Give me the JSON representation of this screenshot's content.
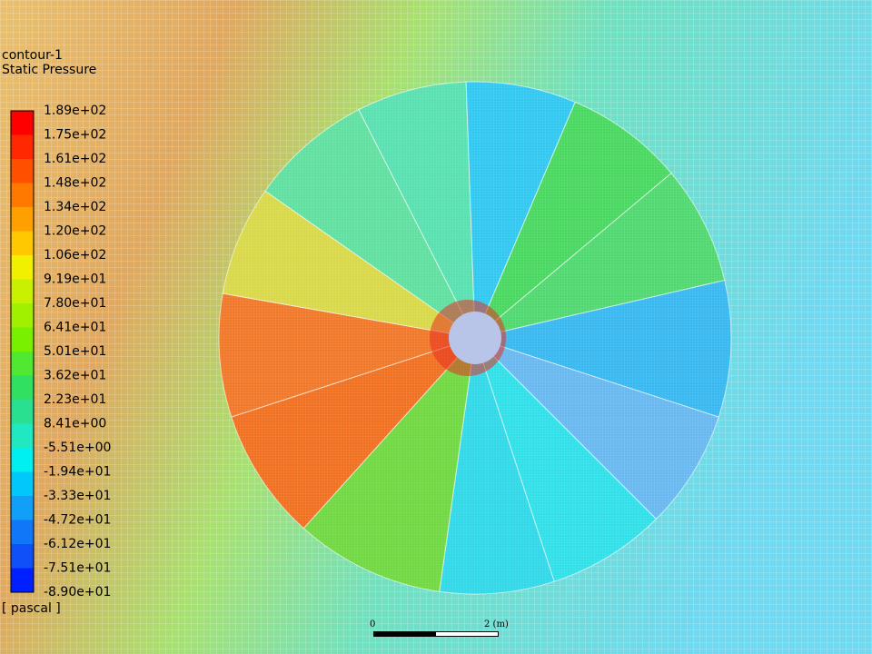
{
  "header": {
    "title": "contour-1",
    "subtitle": "Static Pressure"
  },
  "legend": {
    "labels": [
      "1.89e+02",
      "1.75e+02",
      "1.61e+02",
      "1.48e+02",
      "1.34e+02",
      "1.20e+02",
      "1.06e+02",
      "9.19e+01",
      "7.80e+01",
      "6.41e+01",
      "5.01e+01",
      "3.62e+01",
      "2.23e+01",
      "8.41e+00",
      "-5.51e+00",
      "-1.94e+01",
      "-3.33e+01",
      "-4.72e+01",
      "-6.12e+01",
      "-7.51e+01",
      "-8.90e+01"
    ],
    "unit": "[ pascal ]"
  },
  "scale_bar": {
    "start": "0",
    "end": "2 (m)"
  }
}
